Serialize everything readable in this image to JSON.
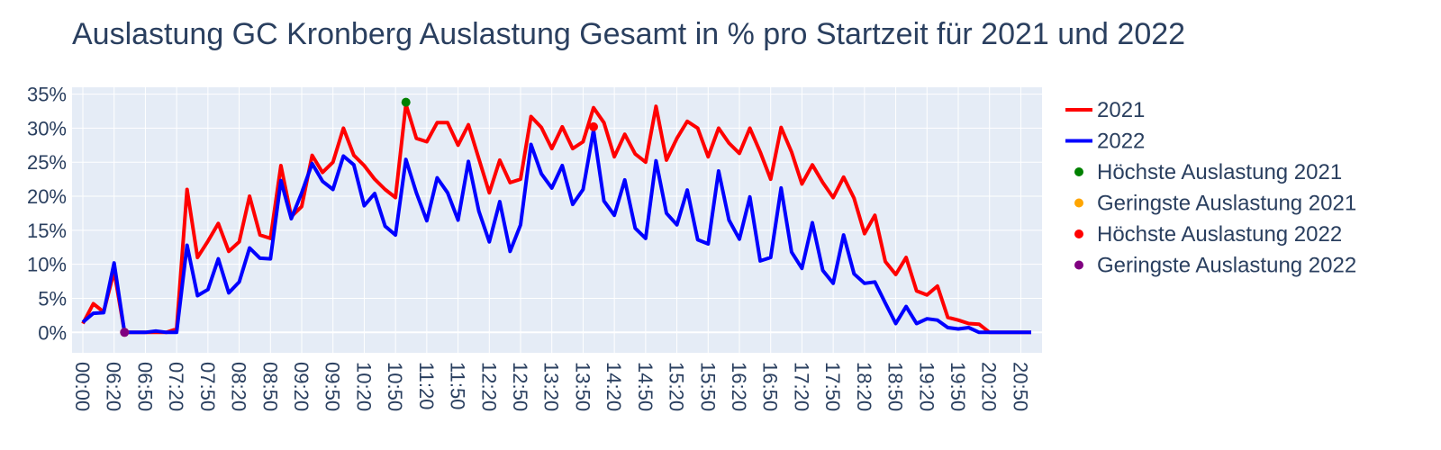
{
  "chart_data": {
    "type": "line",
    "title": "Auslastung GC Kronberg Auslastung Gesamt in % pro Startzeit für 2021 und 2022",
    "xlabel": "",
    "ylabel": "",
    "ylim": [
      -3,
      36
    ],
    "y_ticks": [
      0,
      5,
      10,
      15,
      20,
      25,
      30,
      35
    ],
    "y_tick_labels": [
      "0%",
      "5%",
      "10%",
      "15%",
      "20%",
      "25%",
      "30%",
      "35%"
    ],
    "x_tick_labels": [
      "00:00",
      "06:20",
      "06:50",
      "07:20",
      "07:50",
      "08:20",
      "08:50",
      "09:20",
      "09:50",
      "10:20",
      "10:50",
      "11:20",
      "11:50",
      "12:20",
      "12:50",
      "13:20",
      "13:50",
      "14:20",
      "14:50",
      "15:20",
      "15:50",
      "16:20",
      "16:50",
      "17:20",
      "17:50",
      "18:20",
      "18:50",
      "19:20",
      "19:50",
      "20:20",
      "20:50"
    ],
    "x_tick_positions": [
      0,
      3,
      6,
      9,
      12,
      15,
      18,
      21,
      24,
      27,
      30,
      33,
      36,
      39,
      42,
      45,
      48,
      51,
      54,
      57,
      60,
      63,
      66,
      69,
      72,
      75,
      78,
      81,
      84,
      87,
      90
    ],
    "grid": true,
    "legend_position": "right",
    "series": [
      {
        "name": "2021",
        "color": "#ff0000",
        "values": [
          1.3,
          4.2,
          3.0,
          9.0,
          0.0,
          0.0,
          0.0,
          0.0,
          0.0,
          0.5,
          21.0,
          11.0,
          13.4,
          16.0,
          11.9,
          13.3,
          20.0,
          14.3,
          13.8,
          24.5,
          17.0,
          18.5,
          26.0,
          23.5,
          25.0,
          30.0,
          26.0,
          24.5,
          22.5,
          21.0,
          19.8,
          33.5,
          28.5,
          28.0,
          30.8,
          30.8,
          27.5,
          30.5,
          25.5,
          20.5,
          25.3,
          22.0,
          22.5,
          31.7,
          30.1,
          27.0,
          30.2,
          27.0,
          28.0,
          33.0,
          30.8,
          25.8,
          29.1,
          26.2,
          25.0,
          33.2,
          25.3,
          28.5,
          31.0,
          30.0,
          25.8,
          30.0,
          27.8,
          26.3,
          30.0,
          26.5,
          22.5,
          30.1,
          26.5,
          21.8,
          24.6,
          22.0,
          19.8,
          22.8,
          19.7,
          14.5,
          17.2,
          10.4,
          8.5,
          11.0,
          6.1,
          5.5,
          6.8,
          2.2,
          1.8,
          1.3,
          1.2,
          0.0,
          0.0,
          0.0,
          0.0,
          0.0
        ]
      },
      {
        "name": "2022",
        "color": "#0000ff",
        "values": [
          1.5,
          2.8,
          2.9,
          10.2,
          0.0,
          0.0,
          0.0,
          0.2,
          0.0,
          0.0,
          12.8,
          5.4,
          6.3,
          10.8,
          5.8,
          7.4,
          12.4,
          10.9,
          10.8,
          22.3,
          16.7,
          20.5,
          24.8,
          22.2,
          21.0,
          25.9,
          24.6,
          18.6,
          20.4,
          15.6,
          14.3,
          25.4,
          20.5,
          16.4,
          22.7,
          20.5,
          16.5,
          25.1,
          17.8,
          13.3,
          19.2,
          11.9,
          15.8,
          27.6,
          23.3,
          21.2,
          24.5,
          18.8,
          21.0,
          29.7,
          19.3,
          17.2,
          22.4,
          15.3,
          13.8,
          25.2,
          17.5,
          15.8,
          20.9,
          13.6,
          13.0,
          23.7,
          16.5,
          13.7,
          19.9,
          10.5,
          11.0,
          21.2,
          11.8,
          9.4,
          16.1,
          9.1,
          7.2,
          14.3,
          8.6,
          7.2,
          7.4,
          4.3,
          1.3,
          3.8,
          1.3,
          2.0,
          1.8,
          0.7,
          0.5,
          0.7,
          0.0,
          0.0,
          0.0,
          0.0,
          0.0,
          0.0
        ]
      }
    ],
    "markers": [
      {
        "name": "Höchste Auslastung 2021",
        "color": "#008000",
        "x": 31,
        "y": 33.8
      },
      {
        "name": "Geringste Auslastung 2021",
        "color": "#ffa500",
        "x": 4,
        "y": 0.0
      },
      {
        "name": "Höchste Auslastung 2022",
        "color": "#ff0000",
        "x": 49,
        "y": 30.2
      },
      {
        "name": "Geringste Auslastung 2022",
        "color": "#800080",
        "x": 4,
        "y": 0.0
      }
    ]
  }
}
